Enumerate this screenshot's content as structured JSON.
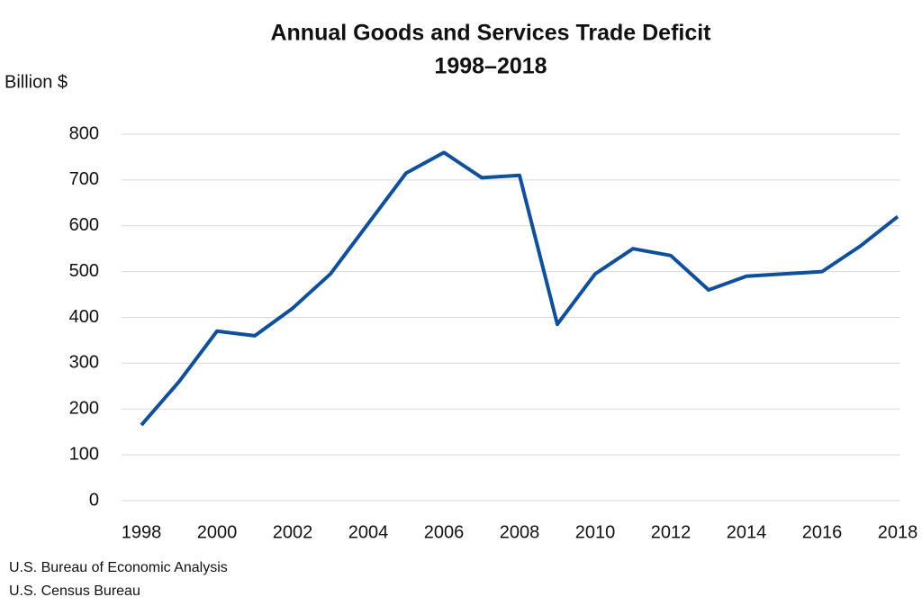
{
  "chart_data": {
    "type": "line",
    "title": "Annual Goods and Services Trade Deficit",
    "subtitle": "1998–2018",
    "y_label": "Billion $",
    "notes": [
      "U.S. Bureau of Economic Analysis",
      "U.S. Census Bureau"
    ],
    "x": [
      1998,
      1999,
      2000,
      2001,
      2002,
      2003,
      2004,
      2005,
      2006,
      2007,
      2008,
      2009,
      2010,
      2011,
      2012,
      2013,
      2014,
      2015,
      2016,
      2017,
      2018
    ],
    "values": [
      165,
      260,
      370,
      360,
      420,
      495,
      605,
      715,
      760,
      705,
      710,
      385,
      495,
      550,
      535,
      460,
      490,
      495,
      500,
      555,
      620
    ],
    "color": "#10509b",
    "xlim": [
      1998,
      2018
    ],
    "xticks": [
      1998,
      2000,
      2002,
      2004,
      2006,
      2008,
      2010,
      2012,
      2014,
      2016,
      2018
    ],
    "ylim": [
      0,
      800
    ],
    "yticks": [
      0,
      100,
      200,
      300,
      400,
      500,
      600,
      700,
      800
    ],
    "grid": true
  }
}
